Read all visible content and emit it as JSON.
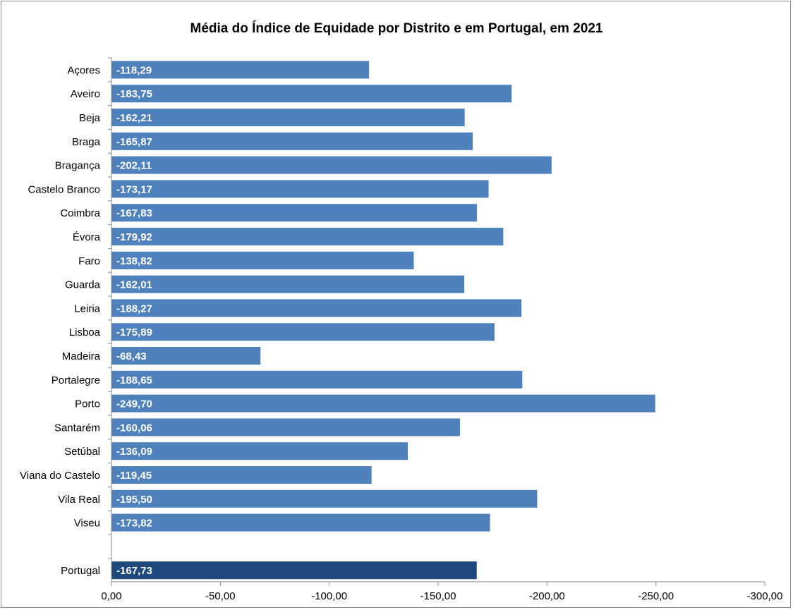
{
  "chart_data": {
    "type": "bar",
    "orientation": "horizontal",
    "title": "Média do Índice de Equidade por Distrito e em Portugal, em 2021",
    "xlabel": "",
    "ylabel": "",
    "xlim": [
      0,
      -300
    ],
    "xticks": [
      0,
      -50,
      -100,
      -150,
      -200,
      -250,
      -300
    ],
    "xtick_labels": [
      "0,00",
      "-50,00",
      "-100,00",
      "-150,00",
      "-200,00",
      "-250,00",
      "-300,00"
    ],
    "grid": false,
    "legend": "none",
    "categories": [
      "Açores",
      "Aveiro",
      "Beja",
      "Braga",
      "Bragança",
      "Castelo Branco",
      "Coimbra",
      "Évora",
      "Faro",
      "Guarda",
      "Leiria",
      "Lisboa",
      "Madeira",
      "Portalegre",
      "Porto",
      "Santarém",
      "Setúbal",
      "Viana do Castelo",
      "Vila Real",
      "Viseu",
      "Portugal"
    ],
    "values": [
      -118.29,
      -183.75,
      -162.21,
      -165.87,
      -202.11,
      -173.17,
      -167.83,
      -179.92,
      -138.82,
      -162.01,
      -188.27,
      -175.89,
      -68.43,
      -188.65,
      -249.7,
      -160.06,
      -136.09,
      -119.45,
      -195.5,
      -173.82,
      -167.73
    ],
    "value_labels": [
      "-118,29",
      "-183,75",
      "-162,21",
      "-165,87",
      "-202,11",
      "-173,17",
      "-167,83",
      "-179,92",
      "-138,82",
      "-162,01",
      "-188,27",
      "-175,89",
      "-68,43",
      "-188,65",
      "-249,70",
      "-160,06",
      "-136,09",
      "-119,45",
      "-195,50",
      "-173,82",
      "-167,73"
    ],
    "gap_before_last": true,
    "colors": {
      "district_bar": "#4f81bd",
      "portugal_bar": "#1f497d",
      "data_label": "#ffffff",
      "axis": "#8a8a8a"
    }
  }
}
